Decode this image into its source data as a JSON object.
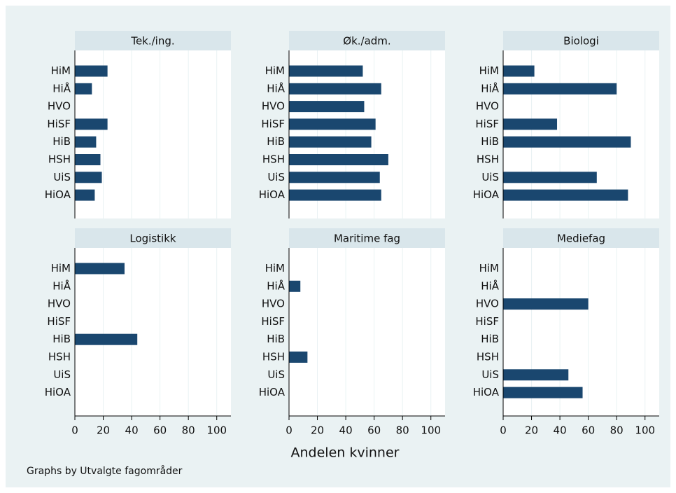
{
  "chart_data": [
    {
      "type": "bar",
      "title": "Tek./ing.",
      "categories": [
        "HiM",
        "HiÅ",
        "HVO",
        "HiSF",
        "HiB",
        "HSH",
        "UiS",
        "HiOA"
      ],
      "values": [
        23,
        12,
        null,
        23,
        15,
        18,
        19,
        14
      ],
      "color": "#1a476f"
    },
    {
      "type": "bar",
      "title": "Øk./adm.",
      "categories": [
        "HiM",
        "HiÅ",
        "HVO",
        "HiSF",
        "HiB",
        "HSH",
        "UiS",
        "HiOA"
      ],
      "values": [
        52,
        65,
        53,
        61,
        58,
        70,
        64,
        65
      ],
      "color": "#1a476f"
    },
    {
      "type": "bar",
      "title": "Biologi",
      "categories": [
        "HiM",
        "HiÅ",
        "HVO",
        "HiSF",
        "HiB",
        "HSH",
        "UiS",
        "HiOA"
      ],
      "values": [
        22,
        80,
        null,
        38,
        90,
        null,
        66,
        88
      ],
      "color": "#1a476f"
    },
    {
      "type": "bar",
      "title": "Logistikk",
      "categories": [
        "HiM",
        "HiÅ",
        "HVO",
        "HiSF",
        "HiB",
        "HSH",
        "UiS",
        "HiOA"
      ],
      "values": [
        35,
        null,
        null,
        null,
        44,
        null,
        null,
        null
      ],
      "color": "#1a476f"
    },
    {
      "type": "bar",
      "title": "Maritime fag",
      "categories": [
        "HiM",
        "HiÅ",
        "HVO",
        "HiSF",
        "HiB",
        "HSH",
        "UiS",
        "HiOA"
      ],
      "values": [
        null,
        8,
        null,
        null,
        null,
        13,
        null,
        null
      ],
      "color": "#1a476f"
    },
    {
      "type": "bar",
      "title": "Mediefag",
      "categories": [
        "HiM",
        "HiÅ",
        "HVO",
        "HiSF",
        "HiB",
        "HSH",
        "UiS",
        "HiOA"
      ],
      "values": [
        null,
        null,
        60,
        null,
        null,
        null,
        46,
        56
      ],
      "color": "#1a476f"
    }
  ],
  "xlabel": "Andelen kvinner",
  "note": "Graphs by Utvalgte fagområder",
  "xlim": [
    0,
    110
  ],
  "xticks": [
    0,
    20,
    40,
    60,
    80,
    100
  ],
  "grid": true
}
